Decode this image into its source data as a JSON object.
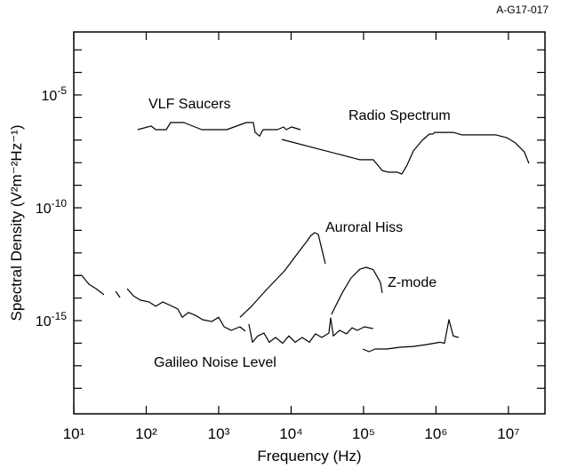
{
  "chart_data": {
    "type": "line",
    "figure_id": "A-G17-017",
    "xlabel": "Frequency (Hz)",
    "ylabel": "Spectral Density (V²m⁻²Hz⁻¹)",
    "xscale": "log",
    "yscale": "log",
    "xlim": [
      10,
      32000000
    ],
    "ylim": [
      7.4e-20,
      0.0062
    ],
    "xticks": [
      {
        "value": 10,
        "label": "10¹"
      },
      {
        "value": 100,
        "label": "10²"
      },
      {
        "value": 1000,
        "label": "10³"
      },
      {
        "value": 10000,
        "label": "10⁴"
      },
      {
        "value": 100000,
        "label": "10⁵"
      },
      {
        "value": 1000000,
        "label": "10⁶"
      },
      {
        "value": 10000000,
        "label": "10⁷"
      }
    ],
    "yticks": [
      {
        "value": 1e-05,
        "label": "10-5"
      },
      {
        "value": 1e-10,
        "label": "10-10"
      },
      {
        "value": 1e-15,
        "label": "10-15"
      }
    ],
    "yminor_ticks": [
      0.001,
      0.0001,
      1e-06,
      1e-07,
      1e-08,
      1e-09,
      1e-11,
      1e-12,
      1e-13,
      1e-14,
      1e-16,
      1e-17,
      1e-18
    ],
    "series": [
      {
        "name": "VLF Saucers",
        "color": "#000000",
        "x": [
          76,
          117,
          135,
          189,
          217,
          332,
          585,
          1290,
          2400,
          3010,
          3190,
          3670,
          4100,
          6450,
          7870,
          8570,
          10100,
          13500
        ],
        "y": [
          2.9e-07,
          4.2e-07,
          2.9e-07,
          2.9e-07,
          6e-07,
          6e-07,
          2.9e-07,
          2.9e-07,
          6e-07,
          6e-07,
          2.2e-07,
          1.5e-07,
          2.9e-07,
          2.9e-07,
          3.8e-07,
          2.9e-07,
          3.8e-07,
          2.9e-07
        ]
      },
      {
        "name": "Radio Spectrum",
        "color": "#000000",
        "x": [
          7430,
          89300,
          136000,
          181000,
          221000,
          293000,
          337000,
          399000,
          487000,
          645000,
          809000,
          906000,
          959000,
          1730000,
          2300000,
          6730000,
          9440000,
          12500000,
          16600000,
          19200000
        ],
        "y": [
          1.07e-07,
          1.34e-08,
          1.34e-08,
          4.5e-09,
          3.8e-09,
          3.8e-09,
          3.1e-09,
          7.8e-09,
          3.3e-08,
          9.8e-08,
          1.85e-07,
          1.85e-07,
          2.2e-07,
          2.2e-07,
          1.7e-07,
          1.7e-07,
          1.3e-07,
          7.5e-08,
          3e-08,
          9.3e-09
        ]
      },
      {
        "name": "Auroral Hiss",
        "color": "#000000",
        "x": [
          1970,
          2840,
          4600,
          8100,
          12400,
          16400,
          18900,
          21200,
          23700,
          26500,
          29700
        ],
        "y": [
          1.4e-15,
          4.3e-15,
          2.4e-14,
          1.6e-13,
          9.8e-13,
          3.2e-12,
          6e-12,
          7.9e-12,
          6.6e-12,
          1.5e-12,
          3.3e-13
        ]
      },
      {
        "name": "Z-mode",
        "color": "#000000",
        "x": [
          36100,
          50800,
          67300,
          89300,
          109000,
          136000,
          171000,
          181000
        ],
        "y": [
          1.9e-15,
          1.7e-14,
          7.8e-14,
          1.9e-13,
          2.3e-13,
          1.8e-13,
          4.9e-14,
          1.7e-14
        ]
      },
      {
        "name": "Galileo Noise Level",
        "color": "#000000",
        "x": [
          10,
          12.9,
          16.2,
          20.3,
          26.1,
          null,
          37.8,
          43.5,
          null,
          54.5,
          66.4,
          83.2,
          110,
          135,
          169,
          217,
          273,
          314,
          383,
          480,
          601,
          798,
          1000,
          1190,
          1490,
          1970,
          2330,
          null,
          2610,
          2930,
          3460,
          4220,
          5000,
          6090,
          7640,
          9300,
          11400,
          14200,
          17900,
          21700,
          26500,
          33200,
          35100,
          38300,
          46700,
          58500,
          69200,
          82000,
          103000,
          136000,
          null,
          97300,
          119000,
          145000,
          209000,
          319000,
          487000,
          743000,
          1140000,
          1310000,
          1510000,
          1730000,
          2060000
        ],
        "y": [
          1e-13,
          1e-13,
          4.1e-14,
          2.6e-14,
          1.4e-14,
          null,
          2e-14,
          1.06e-14,
          null,
          2.6e-14,
          1.26e-14,
          8.1e-15,
          6.7e-15,
          4.3e-15,
          6.7e-15,
          4.7e-15,
          3.3e-15,
          1.4e-15,
          2.3e-15,
          1.7e-15,
          1.1e-15,
          9.1e-16,
          1.4e-15,
          5.3e-16,
          3.7e-16,
          5.3e-16,
          3.4e-16,
          null,
          7e-16,
          1.1e-16,
          2.1e-16,
          2.8e-16,
          1.1e-16,
          1.8e-16,
          1e-16,
          2.1e-16,
          1.1e-16,
          1.8e-16,
          1.1e-16,
          2.6e-16,
          1.8e-16,
          2.8e-16,
          1.3e-15,
          2.1e-16,
          3.7e-16,
          2.6e-16,
          4.8e-16,
          3.7e-16,
          5.3e-16,
          4.4e-16,
          null,
          5.5e-17,
          4.2e-17,
          5.5e-17,
          5.5e-17,
          6.6e-17,
          7.2e-17,
          8.7e-17,
          1.1e-16,
          1e-16,
          1.1e-15,
          2.1e-16,
          1.8e-16
        ]
      }
    ]
  }
}
